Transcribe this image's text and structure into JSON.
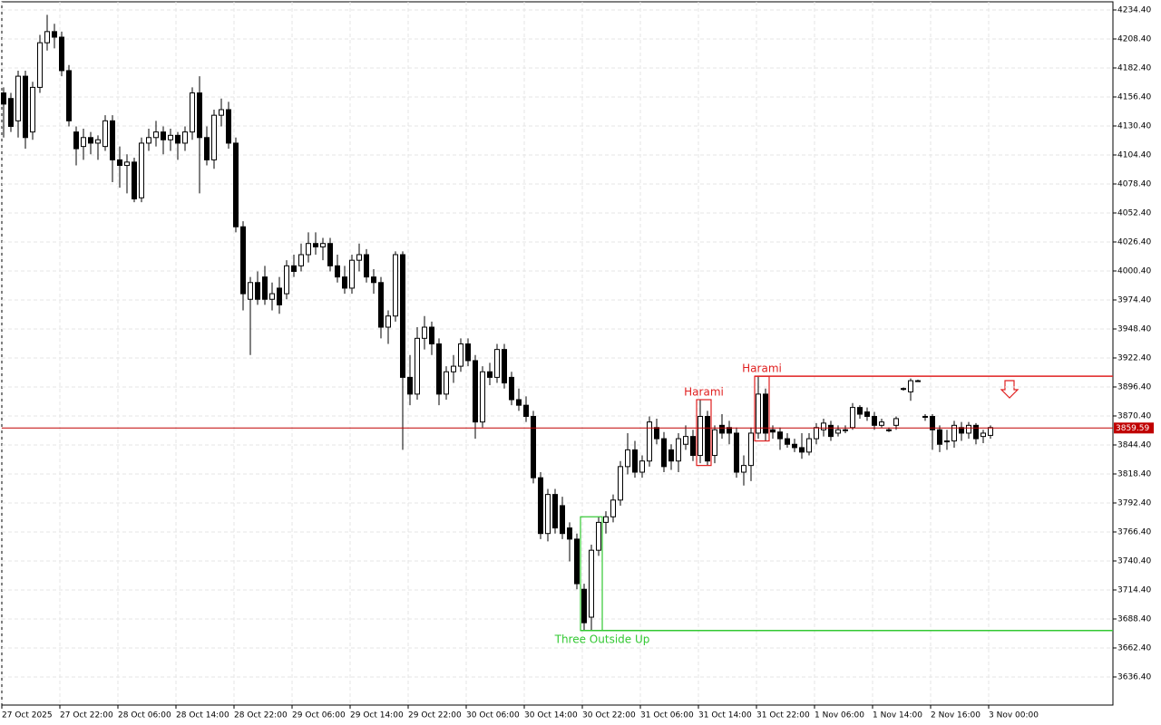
{
  "chart_data": {
    "type": "candlestick",
    "ohlc": [
      [
        4160,
        4165,
        4120,
        4150
      ],
      [
        4155,
        4160,
        4125,
        4130
      ],
      [
        4135,
        4180,
        4120,
        4175
      ],
      [
        4175,
        4180,
        4110,
        4120
      ],
      [
        4125,
        4170,
        4118,
        4165
      ],
      [
        4165,
        4212,
        4160,
        4205
      ],
      [
        4205,
        4230,
        4198,
        4215
      ],
      [
        4215,
        4222,
        4200,
        4210
      ],
      [
        4210,
        4215,
        4175,
        4180
      ],
      [
        4180,
        4185,
        4130,
        4135
      ],
      [
        4125,
        4130,
        4095,
        4110
      ],
      [
        4112,
        4128,
        4100,
        4120
      ],
      [
        4120,
        4125,
        4105,
        4115
      ],
      [
        4115,
        4122,
        4100,
        4118
      ],
      [
        4112,
        4140,
        4108,
        4135
      ],
      [
        4135,
        4140,
        4080,
        4100
      ],
      [
        4100,
        4112,
        4075,
        4095
      ],
      [
        4095,
        4105,
        4070,
        4098
      ],
      [
        4098,
        4102,
        4062,
        4065
      ],
      [
        4066,
        4120,
        4062,
        4115
      ],
      [
        4115,
        4128,
        4108,
        4120
      ],
      [
        4120,
        4135,
        4112,
        4125
      ],
      [
        4125,
        4130,
        4105,
        4118
      ],
      [
        4118,
        4128,
        4108,
        4122
      ],
      [
        4122,
        4125,
        4100,
        4115
      ],
      [
        4115,
        4130,
        4108,
        4125
      ],
      [
        4125,
        4165,
        4118,
        4160
      ],
      [
        4160,
        4175,
        4070,
        4120
      ],
      [
        4120,
        4130,
        4095,
        4100
      ],
      [
        4100,
        4145,
        4092,
        4140
      ],
      [
        4140,
        4155,
        4130,
        4145
      ],
      [
        4145,
        4152,
        4110,
        4115
      ],
      [
        4115,
        4120,
        4035,
        4040
      ],
      [
        4040,
        4045,
        3965,
        3980
      ],
      [
        3975,
        3995,
        3925,
        3990
      ],
      [
        3990,
        4000,
        3970,
        3975
      ],
      [
        3995,
        4005,
        3970,
        3975
      ],
      [
        3975,
        3990,
        3965,
        3980
      ],
      [
        3985,
        3995,
        3962,
        3970
      ],
      [
        3980,
        4010,
        3975,
        4005
      ],
      [
        4005,
        4015,
        3995,
        4000
      ],
      [
        4005,
        4025,
        4000,
        4015
      ],
      [
        4015,
        4035,
        4008,
        4025
      ],
      [
        4025,
        4035,
        4015,
        4022
      ],
      [
        4022,
        4030,
        4010,
        4025
      ],
      [
        4025,
        4030,
        4000,
        4005
      ],
      [
        4005,
        4015,
        3990,
        3995
      ],
      [
        3995,
        4005,
        3980,
        3985
      ],
      [
        3985,
        4015,
        3980,
        4010
      ],
      [
        4010,
        4025,
        4000,
        4015
      ],
      [
        4015,
        4020,
        3990,
        3995
      ],
      [
        3995,
        4002,
        3980,
        3990
      ],
      [
        3990,
        3995,
        3940,
        3950
      ],
      [
        3950,
        3965,
        3935,
        3960
      ],
      [
        3960,
        4018,
        3955,
        4015
      ],
      [
        4015,
        4018,
        3840,
        3905
      ],
      [
        3905,
        3925,
        3880,
        3890
      ],
      [
        3890,
        3950,
        3885,
        3940
      ],
      [
        3940,
        3960,
        3930,
        3950
      ],
      [
        3950,
        3955,
        3925,
        3935
      ],
      [
        3935,
        3940,
        3880,
        3890
      ],
      [
        3890,
        3915,
        3885,
        3910
      ],
      [
        3910,
        3925,
        3900,
        3915
      ],
      [
        3915,
        3940,
        3910,
        3935
      ],
      [
        3935,
        3940,
        3915,
        3920
      ],
      [
        3920,
        3925,
        3850,
        3865
      ],
      [
        3865,
        3915,
        3860,
        3910
      ],
      [
        3910,
        3918,
        3898,
        3905
      ],
      [
        3905,
        3935,
        3900,
        3930
      ],
      [
        3930,
        3935,
        3895,
        3900
      ],
      [
        3905,
        3910,
        3880,
        3885
      ],
      [
        3885,
        3895,
        3875,
        3880
      ],
      [
        3880,
        3888,
        3865,
        3870
      ],
      [
        3870,
        3875,
        3810,
        3815
      ],
      [
        3815,
        3820,
        3760,
        3765
      ],
      [
        3765,
        3805,
        3758,
        3800
      ],
      [
        3800,
        3805,
        3765,
        3770
      ],
      [
        3790,
        3798,
        3760,
        3765
      ],
      [
        3770,
        3775,
        3740,
        3760
      ],
      [
        3760,
        3765,
        3715,
        3720
      ],
      [
        3715,
        3720,
        3678,
        3685
      ],
      [
        3690,
        3755,
        3678,
        3750
      ],
      [
        3750,
        3780,
        3745,
        3775
      ],
      [
        3775,
        3785,
        3765,
        3780
      ],
      [
        3780,
        3800,
        3775,
        3795
      ],
      [
        3795,
        3830,
        3790,
        3825
      ],
      [
        3825,
        3855,
        3818,
        3840
      ],
      [
        3840,
        3848,
        3815,
        3820
      ],
      [
        3820,
        3835,
        3815,
        3830
      ],
      [
        3830,
        3870,
        3825,
        3865
      ],
      [
        3860,
        3868,
        3845,
        3850
      ],
      [
        3850,
        3856,
        3820,
        3825
      ],
      [
        3840,
        3845,
        3822,
        3830
      ],
      [
        3830,
        3855,
        3820,
        3850
      ],
      [
        3845,
        3862,
        3840,
        3852
      ],
      [
        3852,
        3858,
        3830,
        3835
      ],
      [
        3835,
        3885,
        3828,
        3870
      ],
      [
        3870,
        3875,
        3826,
        3830
      ],
      [
        3835,
        3862,
        3828,
        3858
      ],
      [
        3862,
        3872,
        3850,
        3855
      ],
      [
        3860,
        3866,
        3845,
        3855
      ],
      [
        3855,
        3860,
        3815,
        3820
      ],
      [
        3820,
        3835,
        3808,
        3826
      ],
      [
        3826,
        3860,
        3812,
        3855
      ],
      [
        3855,
        3906,
        3850,
        3890
      ],
      [
        3890,
        3895,
        3848,
        3855
      ],
      [
        3858,
        3862,
        3850,
        3856
      ],
      [
        3856,
        3860,
        3840,
        3850
      ],
      [
        3850,
        3855,
        3842,
        3845
      ],
      [
        3845,
        3850,
        3838,
        3842
      ],
      [
        3842,
        3855,
        3832,
        3838
      ],
      [
        3838,
        3855,
        3835,
        3850
      ],
      [
        3850,
        3864,
        3845,
        3860
      ],
      [
        3858,
        3868,
        3852,
        3864
      ],
      [
        3862,
        3866,
        3848,
        3852
      ],
      [
        3855,
        3862,
        3852,
        3858
      ],
      [
        3858,
        3862,
        3855,
        3858
      ],
      [
        3860,
        3882,
        3858,
        3878
      ],
      [
        3878,
        3880,
        3868,
        3872
      ],
      [
        3874,
        3878,
        3866,
        3870
      ],
      [
        3870,
        3874,
        3858,
        3862
      ],
      [
        3862,
        3868,
        3860,
        3865
      ],
      [
        3858,
        3860,
        3856,
        3858
      ],
      [
        3862,
        3870,
        3858,
        3868
      ],
      [
        3895,
        3896,
        3893,
        3895
      ],
      [
        3892,
        3904,
        3884,
        3902
      ],
      [
        3902,
        3903,
        3901,
        3902
      ],
      [
        3870,
        3872,
        3866,
        3870
      ],
      [
        3870,
        3872,
        3840,
        3858
      ],
      [
        3858,
        3862,
        3838,
        3845
      ],
      [
        3848,
        3858,
        3840,
        3848
      ],
      [
        3848,
        3866,
        3842,
        3862
      ],
      [
        3860,
        3865,
        3848,
        3855
      ],
      [
        3855,
        3865,
        3850,
        3862
      ],
      [
        3862,
        3864,
        3845,
        3850
      ],
      [
        3852,
        3858,
        3846,
        3855
      ],
      [
        3853,
        3862,
        3850,
        3860
      ]
    ],
    "ylim": [
      3611.2,
      4241.7
    ],
    "yticks": [
      {
        "value": 3636.4,
        "label": "3636.40"
      },
      {
        "value": 3662.4,
        "label": "3662.40"
      },
      {
        "value": 3688.4,
        "label": "3688.40"
      },
      {
        "value": 3714.4,
        "label": "3714.40"
      },
      {
        "value": 3740.4,
        "label": "3740.40"
      },
      {
        "value": 3766.4,
        "label": "3766.40"
      },
      {
        "value": 3792.4,
        "label": "3792.40"
      },
      {
        "value": 3818.4,
        "label": "3818.40"
      },
      {
        "value": 3844.4,
        "label": "3844.40"
      },
      {
        "value": 3870.4,
        "label": "3870.40"
      },
      {
        "value": 3896.4,
        "label": "3896.40"
      },
      {
        "value": 3922.4,
        "label": "3922.40"
      },
      {
        "value": 3948.4,
        "label": "3948.40"
      },
      {
        "value": 3974.4,
        "label": "3974.40"
      },
      {
        "value": 4000.4,
        "label": "4000.40"
      },
      {
        "value": 4026.4,
        "label": "4026.40"
      },
      {
        "value": 4052.4,
        "label": "4052.40"
      },
      {
        "value": 4078.4,
        "label": "4078.40"
      },
      {
        "value": 4104.4,
        "label": "4104.40"
      },
      {
        "value": 4130.4,
        "label": "4130.40"
      },
      {
        "value": 4156.4,
        "label": "4156.40"
      },
      {
        "value": 4182.4,
        "label": "4182.40"
      },
      {
        "value": 4208.4,
        "label": "4208.40"
      },
      {
        "value": 4234.4,
        "label": "4234.40"
      }
    ],
    "xticks": [
      {
        "value": 0,
        "label": "27 Oct 2025"
      },
      {
        "value": 8,
        "label": "27 Oct 22:00"
      },
      {
        "value": 16,
        "label": "28 Oct 06:00"
      },
      {
        "value": 24,
        "label": "28 Oct 14:00"
      },
      {
        "value": 32,
        "label": "28 Oct 22:00"
      },
      {
        "value": 40,
        "label": "29 Oct 06:00"
      },
      {
        "value": 48,
        "label": "29 Oct 14:00"
      },
      {
        "value": 56,
        "label": "29 Oct 22:00"
      },
      {
        "value": 64,
        "label": "30 Oct 06:00"
      },
      {
        "value": 72,
        "label": "30 Oct 14:00"
      },
      {
        "value": 80,
        "label": "30 Oct 22:00"
      },
      {
        "value": 88,
        "label": "31 Oct 06:00"
      },
      {
        "value": 96,
        "label": "31 Oct 14:00"
      },
      {
        "value": 104,
        "label": "31 Oct 22:00"
      },
      {
        "value": 112,
        "label": "1 Nov 06:00"
      },
      {
        "value": 120,
        "label": "1 Nov 14:00"
      },
      {
        "value": 128,
        "label": "2 Nov 16:00"
      },
      {
        "value": 136,
        "label": "3 Nov 00:00"
      }
    ],
    "grid": true,
    "price_line": {
      "value": 3859.59,
      "label": "3859.59",
      "color": "#c00000"
    },
    "patterns": [
      {
        "name": "Harami",
        "color": "#e02020"
      },
      {
        "name": "Harami",
        "color": "#e02020"
      },
      {
        "name": "Three Outside Up",
        "color": "#32c832"
      }
    ]
  }
}
